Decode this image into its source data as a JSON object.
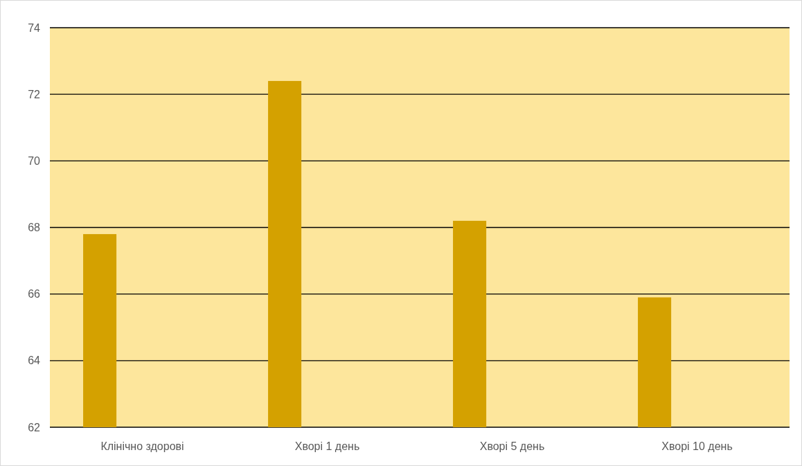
{
  "chart_data": {
    "type": "bar",
    "categories": [
      "Клінічно здорові",
      "Хворі 1 день",
      "Хворі 5 день",
      "Хворі 10 день"
    ],
    "values": [
      67.8,
      72.4,
      68.2,
      65.9
    ],
    "color": "#d4a100",
    "ylim": [
      62,
      74
    ],
    "yticks": [
      62,
      64,
      66,
      68,
      70,
      72,
      74
    ],
    "grid": "y"
  }
}
